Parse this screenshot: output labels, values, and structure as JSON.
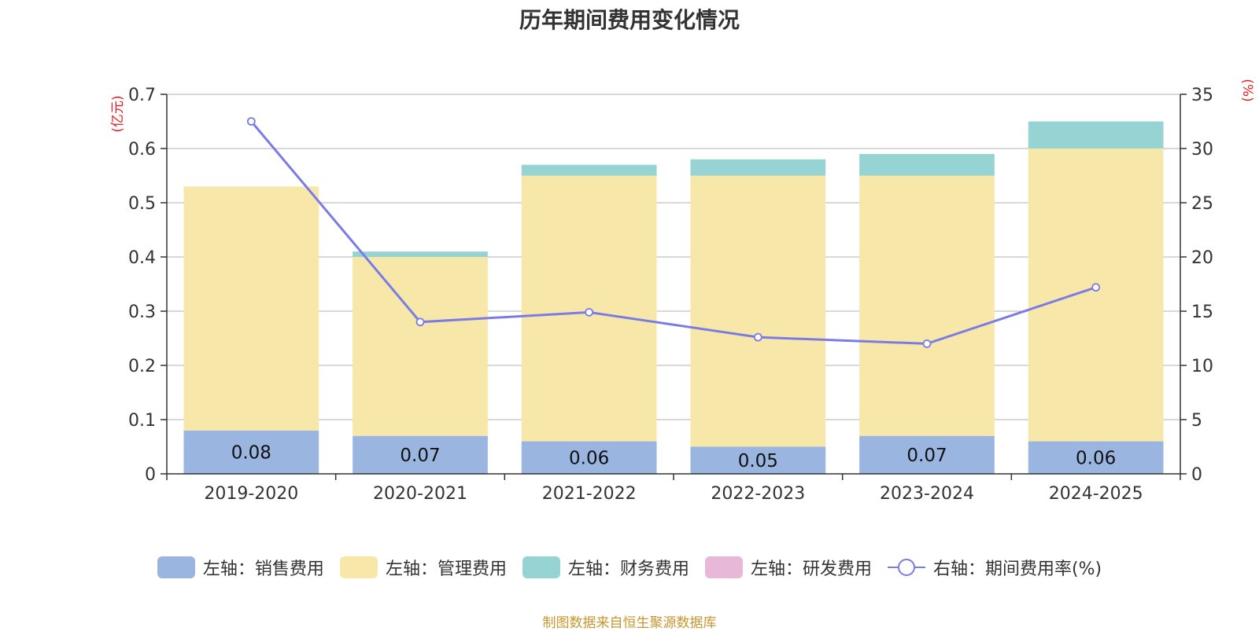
{
  "chart_data": {
    "type": "bar",
    "title": "历年期间费用变化情况",
    "categories": [
      "2019-2020",
      "2020-2021",
      "2021-2022",
      "2022-2023",
      "2023-2024",
      "2024-2025"
    ],
    "y_left": {
      "unit": "(亿元)",
      "range": [
        0,
        0.7
      ],
      "ticks": [
        "0",
        "0.1",
        "0.2",
        "0.3",
        "0.4",
        "0.5",
        "0.6",
        "0.7"
      ]
    },
    "y_right": {
      "unit": "(%)",
      "range": [
        0,
        35
      ],
      "ticks": [
        "0",
        "5",
        "10",
        "15",
        "20",
        "25",
        "30",
        "35"
      ]
    },
    "stacked": true,
    "grid": true,
    "legend_position": "bottom",
    "series": [
      {
        "name": "左轴：销售费用",
        "axis": "left",
        "type": "bar",
        "color": "#9ab6e0",
        "values": [
          0.08,
          0.07,
          0.06,
          0.05,
          0.07,
          0.06
        ],
        "labels": [
          "0.08",
          "0.07",
          "0.06",
          "0.05",
          "0.07",
          "0.06"
        ]
      },
      {
        "name": "左轴：管理费用",
        "axis": "left",
        "type": "bar",
        "color": "#f7e7a8",
        "values": [
          0.45,
          0.33,
          0.49,
          0.5,
          0.48,
          0.54
        ]
      },
      {
        "name": "左轴：财务费用",
        "axis": "left",
        "type": "bar",
        "color": "#96d4d4",
        "values": [
          0.0,
          0.01,
          0.02,
          0.03,
          0.04,
          0.05
        ]
      },
      {
        "name": "左轴：研发费用",
        "axis": "left",
        "type": "bar",
        "color": "#e8b8d8",
        "values": [
          0,
          0,
          0,
          0,
          0,
          0
        ]
      },
      {
        "name": "右轴：期间费用率(%)",
        "axis": "right",
        "type": "line",
        "color": "#7b7be8",
        "values": [
          32.5,
          14.0,
          14.9,
          12.6,
          12.0,
          17.2
        ]
      }
    ]
  },
  "footer": "制图数据来自恒生聚源数据库"
}
